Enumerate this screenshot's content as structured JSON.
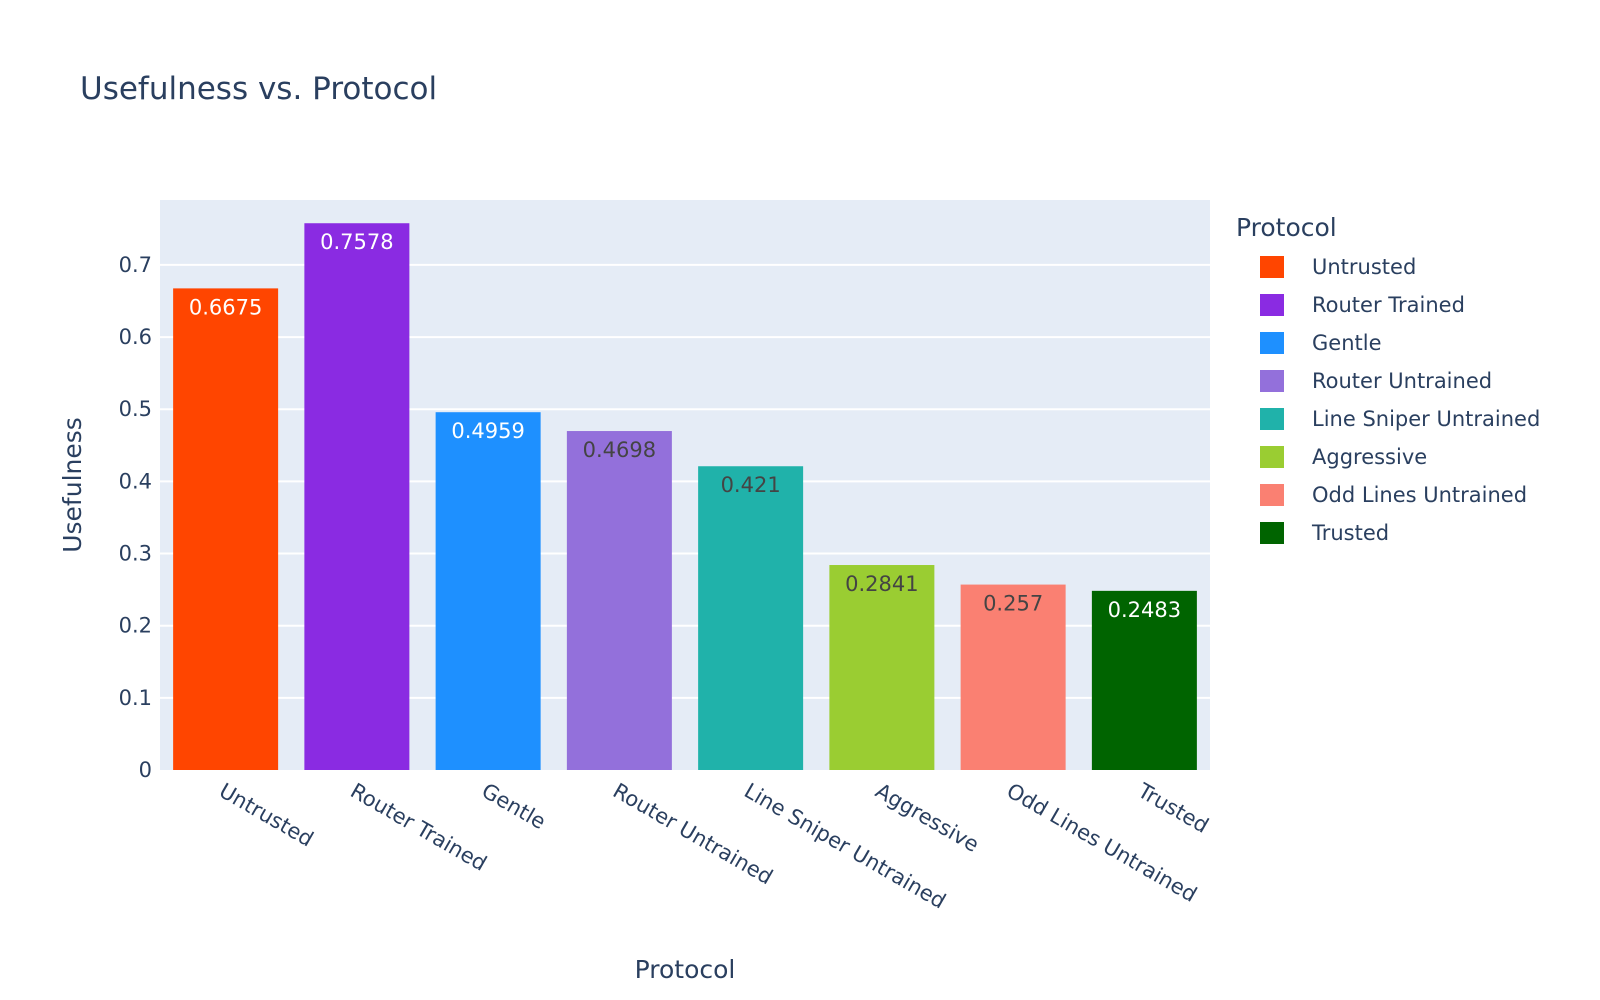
{
  "chart_data": {
    "type": "bar",
    "title": "Usefulness vs. Protocol",
    "xlabel": "Protocol",
    "ylabel": "Usefulness",
    "legend_title": "Protocol",
    "legend_position": "right",
    "grid": true,
    "ylim": [
      0,
      0.79
    ],
    "yticks": [
      0,
      0.1,
      0.2,
      0.3,
      0.4,
      0.5,
      0.6,
      0.7
    ],
    "ytick_labels": [
      "0",
      "0.1",
      "0.2",
      "0.3",
      "0.4",
      "0.5",
      "0.6",
      "0.7"
    ],
    "categories": [
      "Untrusted",
      "Router Trained",
      "Gentle",
      "Router Untrained",
      "Line Sniper Untrained",
      "Aggressive",
      "Odd Lines Untrained",
      "Trusted"
    ],
    "values": [
      0.6675,
      0.7578,
      0.4959,
      0.4698,
      0.421,
      0.2841,
      0.257,
      0.2483
    ],
    "value_labels": [
      "0.6675",
      "0.7578",
      "0.4959",
      "0.4698",
      "0.421",
      "0.2841",
      "0.257",
      "0.2483"
    ],
    "colors": [
      "#ff4500",
      "#8a2be2",
      "#1e90ff",
      "#9370db",
      "#20b2aa",
      "#9acd32",
      "#fa8072",
      "#006400"
    ],
    "label_colors": [
      "#ffffff",
      "#ffffff",
      "#ffffff",
      "#444444",
      "#444444",
      "#444444",
      "#444444",
      "#ffffff"
    ],
    "plot_background": "#e5ecf6",
    "text_color": "#2a3f5f"
  }
}
